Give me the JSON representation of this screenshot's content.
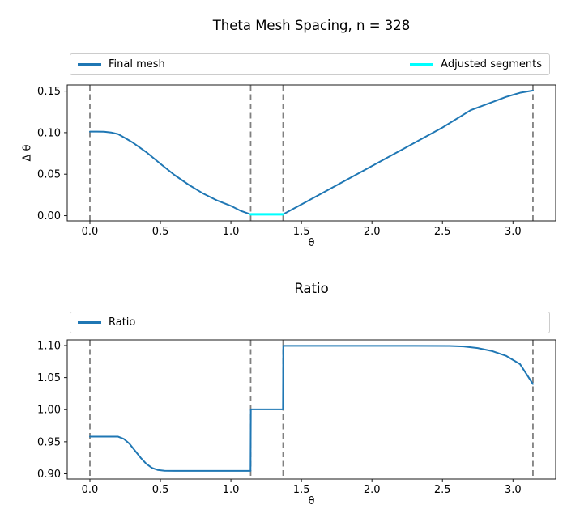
{
  "figure": {
    "background": "#ffffff",
    "text_color": "#000000",
    "spine_color": "#1a1a1a"
  },
  "chart_data": [
    {
      "type": "line",
      "title": "Theta Mesh Spacing, n = 328",
      "xlabel": "θ",
      "ylabel": "Δ θ",
      "xlim": [
        -0.1608,
        3.3027
      ],
      "ylim": [
        -0.0063,
        0.1574
      ],
      "xticks": [
        0.0,
        0.5,
        1.0,
        1.5,
        2.0,
        2.5,
        3.0
      ],
      "xtick_labels": [
        "0.0",
        "0.5",
        "1.0",
        "1.5",
        "2.0",
        "2.5",
        "3.0"
      ],
      "yticks": [
        0.0,
        0.05,
        0.1,
        0.15
      ],
      "ytick_labels": [
        "0.00",
        "0.05",
        "0.10",
        "0.15"
      ],
      "grid": false,
      "vlines": {
        "x": [
          0.0,
          1.14,
          1.37,
          3.1416
        ],
        "color": "#808080",
        "style": "dashed"
      },
      "legend": {
        "position": "above-axes-expanded",
        "entries": [
          {
            "label": "Final mesh",
            "color": "#1f77b4"
          },
          {
            "label": "Adjusted segments",
            "color": "#00ffff"
          }
        ]
      },
      "series": [
        {
          "name": "Final mesh",
          "slug": "final-mesh-line",
          "color": "#1f77b4",
          "linewidth": 2,
          "x": [
            0,
            0.05,
            0.1,
            0.15,
            0.2,
            0.25,
            0.3,
            0.4,
            0.5,
            0.6,
            0.7,
            0.8,
            0.9,
            1.0,
            1.07,
            1.14,
            1.37,
            1.5,
            1.7,
            1.9,
            2.1,
            2.3,
            2.5,
            2.7,
            2.85,
            2.95,
            3.05,
            3.1416
          ],
          "y": [
            0.1012,
            0.1013,
            0.1011,
            0.1002,
            0.0982,
            0.0935,
            0.0885,
            0.0765,
            0.0625,
            0.049,
            0.0373,
            0.027,
            0.0185,
            0.0118,
            0.0058,
            0.0016,
            0.0016,
            0.0136,
            0.0321,
            0.0506,
            0.0691,
            0.0876,
            0.1061,
            0.127,
            0.1365,
            0.143,
            0.148,
            0.1507
          ]
        },
        {
          "name": "Adjusted segments",
          "slug": "adjusted-segments-line",
          "color": "#00ffff",
          "linewidth": 3,
          "x": [
            1.14,
            1.37
          ],
          "y": [
            0.0016,
            0.0016
          ]
        }
      ]
    },
    {
      "type": "line",
      "title": "Ratio",
      "xlabel": "θ",
      "ylabel": "",
      "xlim": [
        -0.1608,
        3.3027
      ],
      "ylim": [
        0.8918,
        1.1088
      ],
      "xticks": [
        0.0,
        0.5,
        1.0,
        1.5,
        2.0,
        2.5,
        3.0
      ],
      "xtick_labels": [
        "0.0",
        "0.5",
        "1.0",
        "1.5",
        "2.0",
        "2.5",
        "3.0"
      ],
      "yticks": [
        0.9,
        0.95,
        1.0,
        1.05,
        1.1
      ],
      "ytick_labels": [
        "0.90",
        "0.95",
        "1.00",
        "1.05",
        "1.10"
      ],
      "grid": false,
      "vlines": {
        "x": [
          0.0,
          1.14,
          1.37,
          3.1416
        ],
        "color": "#808080",
        "style": "dashed"
      },
      "legend": {
        "position": "above-axes-expanded",
        "entries": [
          {
            "label": "Ratio",
            "color": "#1f77b4"
          }
        ]
      },
      "series": [
        {
          "name": "Ratio",
          "slug": "ratio-line",
          "color": "#1f77b4",
          "linewidth": 2,
          "x": [
            0,
            0.1,
            0.2,
            0.24,
            0.28,
            0.32,
            0.36,
            0.4,
            0.44,
            0.48,
            0.53,
            0.6,
            0.8,
            1.0,
            1.139,
            1.141,
            1.369,
            1.371,
            1.6,
            2.0,
            2.3,
            2.55,
            2.65,
            2.75,
            2.85,
            2.95,
            3.05,
            3.1416
          ],
          "y": [
            0.958,
            0.958,
            0.958,
            0.9545,
            0.947,
            0.936,
            0.925,
            0.9155,
            0.9092,
            0.906,
            0.9048,
            0.9046,
            0.9046,
            0.9046,
            0.9046,
            1.0005,
            1.0005,
            1.0995,
            1.0995,
            1.0995,
            1.0995,
            1.0993,
            1.0985,
            1.096,
            1.0915,
            1.084,
            1.071,
            1.04
          ]
        }
      ]
    }
  ]
}
